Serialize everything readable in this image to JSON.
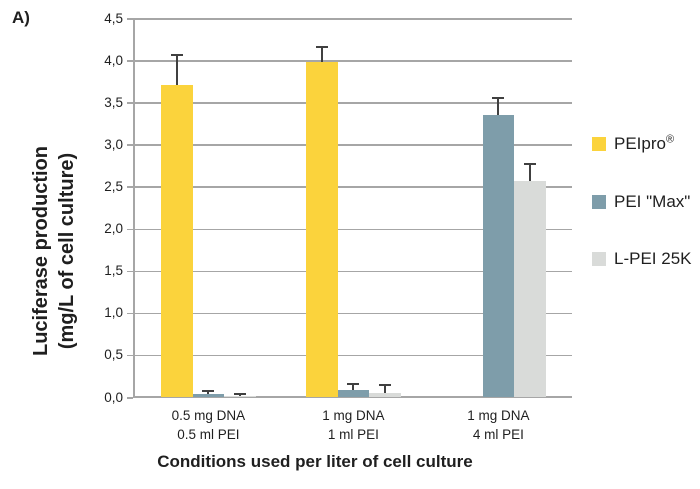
{
  "panel_label": "A)",
  "chart_data": {
    "type": "bar",
    "title": "",
    "xlabel": "Conditions used per liter of cell culture",
    "ylabel_lines": [
      "Luciferase production",
      "(mg/L of cell culture)"
    ],
    "ylim": [
      0,
      4.5
    ],
    "ytick_values": [
      0,
      0.5,
      1,
      1.5,
      2,
      2.5,
      3,
      3.5,
      4,
      4.5
    ],
    "ytick_labels": [
      "0,0",
      "0,5",
      "1,0",
      "1,5",
      "2,0",
      "2,5",
      "3,0",
      "3,5",
      "4,0",
      "4,5"
    ],
    "grid": true,
    "legend_position": "right",
    "categories": [
      {
        "line1": "0.5 mg DNA",
        "line2": "0.5 ml PEI"
      },
      {
        "line1": "1 mg DNA",
        "line2": "1 ml PEI"
      },
      {
        "line1": "1 mg DNA",
        "line2": "4 ml PEI"
      }
    ],
    "series": [
      {
        "name": "PEIpro",
        "name_sup": "®",
        "color": "#FBD33C",
        "values": [
          3.71,
          3.98,
          null
        ],
        "errors_plus": [
          0.35,
          0.18,
          null
        ]
      },
      {
        "name": "PEI \"Max\"",
        "name_sup": "",
        "color": "#7E9DAA",
        "values": [
          0.03,
          0.08,
          3.35
        ],
        "errors_plus": [
          0.04,
          0.07,
          0.2
        ]
      },
      {
        "name": "L-PEI 25K",
        "name_sup": "",
        "color": "#D9DBD9",
        "values": [
          0.01,
          0.05,
          2.57
        ],
        "errors_plus": [
          0.02,
          0.09,
          0.2
        ]
      }
    ]
  },
  "colors": {
    "gridline": "#A6A6A6",
    "axis": "#A6A6A6",
    "error_bar": "#404040",
    "text": "#1F1F1F",
    "background": "#FFFFFF"
  }
}
